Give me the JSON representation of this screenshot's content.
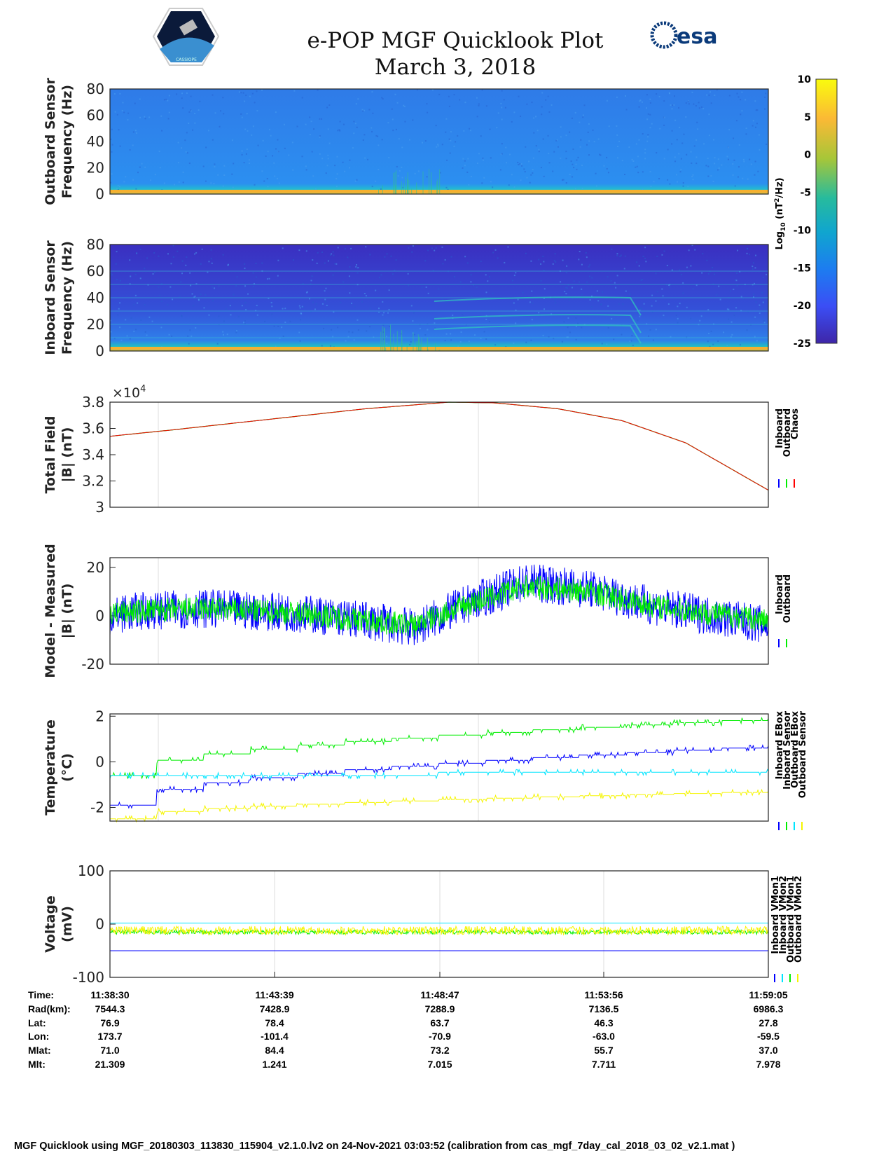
{
  "header": {
    "title": "e-POP MGF Quicklook Plot",
    "date": "March 3, 2018",
    "left_logo_text": "CASSIOPE",
    "right_logo_text": "esa"
  },
  "colors": {
    "inboard": "#0000ff",
    "outboard": "#00ee00",
    "chaos": "#ff0000",
    "cyan": "#00e5ff",
    "yellow": "#f5f500"
  },
  "chart_data": [
    {
      "type": "heatmap",
      "name": "outboard-spectrogram",
      "ylabel": "Outboard Sensor\nFrequency (Hz)",
      "ylabel_lines": [
        "Outboard Sensor",
        "Frequency (Hz)"
      ],
      "ylim": [
        0,
        80
      ],
      "yticks": [
        "80",
        "60",
        "40",
        "20",
        "0"
      ]
    },
    {
      "type": "heatmap",
      "name": "inboard-spectrogram",
      "ylabel_lines": [
        "Inboard Sensor",
        "Frequency (Hz)"
      ],
      "ylim": [
        0,
        80
      ],
      "yticks": [
        "80",
        "60",
        "40",
        "20",
        "0"
      ],
      "lines_hz": [
        10,
        20,
        30,
        40,
        50,
        60
      ]
    },
    {
      "type": "colorbar",
      "label": "Log10 (nT^2/Hz)",
      "label_main": "Log",
      "label_sub": "10",
      "label_rest": " (nT",
      "label_sup": "2",
      "label_end": "/Hz)",
      "ticks": [
        "10",
        "5",
        "0",
        "-5",
        "-10",
        "-15",
        "-20",
        "-25"
      ],
      "range": [
        -25,
        10
      ]
    },
    {
      "type": "line",
      "name": "total-field",
      "ylabel_lines": [
        "Total Field",
        "|B| (nT)"
      ],
      "ylim": [
        3,
        3.8
      ],
      "yticks": [
        "3.8",
        "3.6",
        "3.4",
        "3.2",
        "3"
      ],
      "exponent": "×10",
      "exponent_power": "4",
      "legend": [
        "Inboard",
        "Outboard",
        "Chaos"
      ],
      "series": [
        {
          "name": "Chaos",
          "x_min": [
            0,
            2,
            5,
            8,
            10.6,
            12,
            14,
            16,
            18,
            20.58
          ],
          "y": [
            35400,
            35900,
            36700,
            37500,
            38000,
            37950,
            37500,
            36600,
            34900,
            31300
          ]
        }
      ]
    },
    {
      "type": "line",
      "name": "model-minus-measured",
      "ylabel_lines": [
        "Model - Measured",
        "|B| (nT)"
      ],
      "ylim": [
        -20,
        24
      ],
      "yticks": [
        "20",
        "0",
        "-20"
      ],
      "legend": [
        "Inboard",
        "Outboard"
      ],
      "series": [
        {
          "name": "Inboard",
          "x_min": [
            0,
            1,
            3,
            6,
            8,
            9.5,
            11,
            13,
            15,
            17,
            20.58
          ],
          "center": [
            0,
            2,
            3,
            1,
            -2,
            -5,
            4,
            14,
            11,
            4,
            -4
          ],
          "amplitude": 8
        },
        {
          "name": "Outboard",
          "x_min": [
            0,
            1,
            3,
            6,
            8,
            9.5,
            11,
            13,
            15,
            17,
            20.58
          ],
          "center": [
            1,
            2,
            3,
            1,
            -2,
            -4,
            4,
            12,
            10,
            4,
            -2
          ],
          "amplitude": 5
        }
      ]
    },
    {
      "type": "line",
      "name": "temperature",
      "ylabel_lines": [
        "Temperature",
        "(°C)"
      ],
      "ylim": [
        -2.6,
        2.1
      ],
      "yticks": [
        "2",
        "0",
        "-2"
      ],
      "legend": [
        "Inboard EBox",
        "Inboard Sensor",
        "Outboard EBox",
        "Outboard Sensor"
      ],
      "series": [
        {
          "name": "Inboard EBox",
          "start": -1.9,
          "end": 0.7
        },
        {
          "name": "Inboard Sensor",
          "start": -0.6,
          "end": 1.9
        },
        {
          "name": "Outboard EBox",
          "start": -0.6,
          "end": -0.4
        },
        {
          "name": "Outboard Sensor",
          "start": -2.5,
          "end": -1.3
        }
      ]
    },
    {
      "type": "line",
      "name": "voltage",
      "ylabel_lines": [
        "Voltage",
        "(mV)"
      ],
      "ylim": [
        -100,
        100
      ],
      "yticks": [
        "100",
        "0",
        "-100"
      ],
      "legend": [
        "Inboard VMon1",
        "Inboard VMon2",
        "Outboard VMon1",
        "Outboard VMon2"
      ],
      "series": [
        {
          "name": "Inboard VMon1",
          "level": -50
        },
        {
          "name": "Inboard VMon2",
          "level": 2
        },
        {
          "name": "Outboard VMon1",
          "level": -15
        },
        {
          "name": "Outboard VMon2",
          "level": -12
        }
      ]
    }
  ],
  "table": {
    "row_labels": [
      "Time:",
      "Rad(km):",
      "Lat:",
      "Lon:",
      "Mlat:",
      "Mlt:"
    ],
    "columns": [
      [
        "11:38:30",
        "7544.3",
        "76.9",
        "173.7",
        "71.0",
        "21.309"
      ],
      [
        "11:43:39",
        "7428.9",
        "78.4",
        "-101.4",
        "84.4",
        "1.241"
      ],
      [
        "11:48:47",
        "7288.9",
        "63.7",
        "-70.9",
        "73.2",
        "7.015"
      ],
      [
        "11:53:56",
        "7136.5",
        "46.3",
        "-63.0",
        "55.7",
        "7.711"
      ],
      [
        "11:59:05",
        "6986.3",
        "27.8",
        "-59.5",
        "37.0",
        "7.978"
      ]
    ]
  },
  "footer": "MGF Quicklook using MGF_20180303_113830_115904_v2.1.0.lv2 on 24-Nov-2021 03:03:52 (calibration from cas_mgf_7day_cal_2018_03_02_v2.1.mat )"
}
